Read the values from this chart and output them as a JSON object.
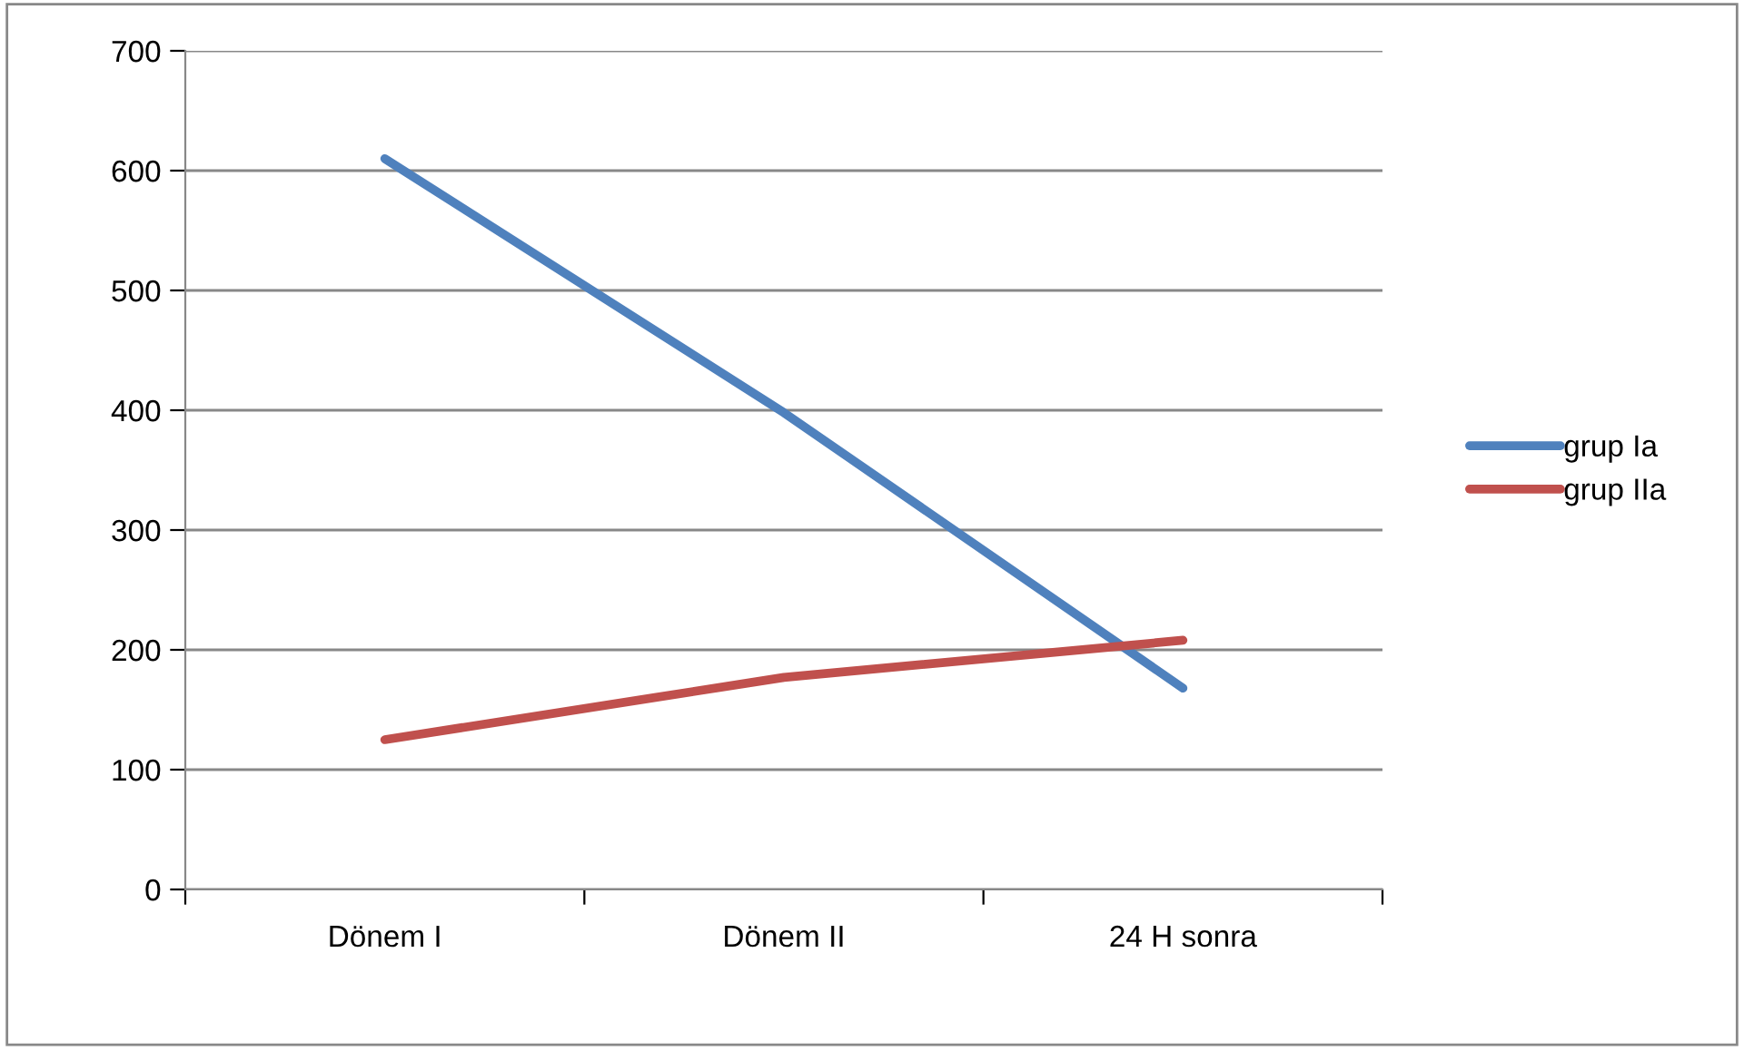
{
  "chart_data": {
    "type": "line",
    "categories": [
      "Dönem I",
      "Dönem II",
      "24 H sonra"
    ],
    "series": [
      {
        "name": "grup Ia",
        "color": "#4f81bd",
        "values": [
          610,
          398,
          168
        ]
      },
      {
        "name": "grup IIa",
        "color": "#c0504d",
        "values": [
          125,
          177,
          208
        ]
      }
    ],
    "ylim": [
      0,
      700
    ],
    "yticks": [
      0,
      100,
      200,
      300,
      400,
      500,
      600,
      700
    ],
    "grid": "y",
    "legend": "right",
    "marker": "none",
    "line_style": "solid"
  }
}
